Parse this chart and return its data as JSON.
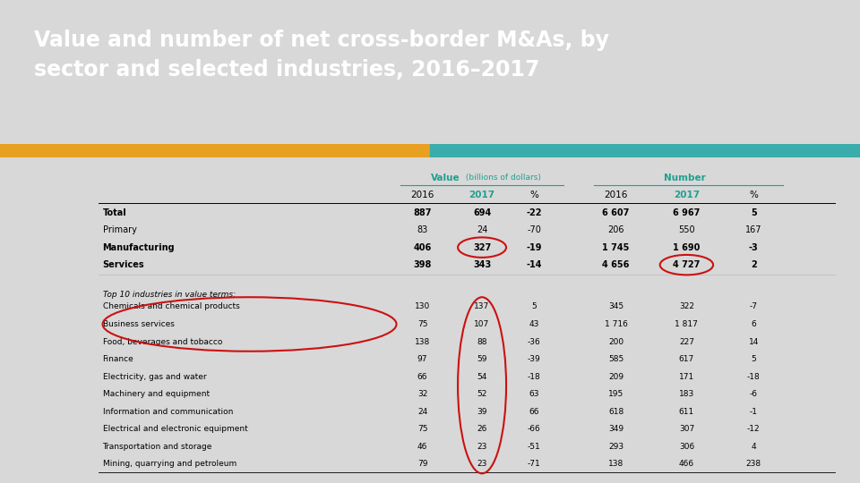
{
  "title_line1": "Value and number of net cross-border M&As, by",
  "title_line2": "sector and selected industries, 2016–2017",
  "title_bg_color": "#636363",
  "title_text_color": "#ffffff",
  "accent_color1": "#e8a020",
  "accent_color2": "#3aacac",
  "slide_bg_color": "#d8d8d8",
  "header_teal": "#20a090",
  "col_headers_2": [
    "2016",
    "2017",
    "%",
    "2016",
    "2017",
    "%"
  ],
  "sectors": [
    [
      "Total",
      "887",
      "694",
      "-22",
      "6 607",
      "6 967",
      "5",
      true,
      true
    ],
    [
      "Primary",
      "83",
      "24",
      "-70",
      "206",
      "550",
      "167",
      false,
      false
    ],
    [
      "Manufacturing",
      "406",
      "327",
      "-19",
      "1 745",
      "1 690",
      "-3",
      true,
      true
    ],
    [
      "Services",
      "398",
      "343",
      "-14",
      "4 656",
      "4 727",
      "2",
      true,
      true
    ]
  ],
  "industries_header": "Top 10 industries in value terms:",
  "industries": [
    [
      "Chemicals and chemical products",
      "130",
      "137",
      "5",
      "345",
      "322",
      "-7"
    ],
    [
      "Business services",
      "75",
      "107",
      "43",
      "1 716",
      "1 817",
      "6"
    ],
    [
      "Food, beverages and tobacco",
      "138",
      "88",
      "-36",
      "200",
      "227",
      "14"
    ],
    [
      "Finance",
      "97",
      "59",
      "-39",
      "585",
      "617",
      "5"
    ],
    [
      "Electricity, gas and water",
      "66",
      "54",
      "-18",
      "209",
      "171",
      "-18"
    ],
    [
      "Machinery and equipment",
      "32",
      "52",
      "63",
      "195",
      "183",
      "-6"
    ],
    [
      "Information and communication",
      "24",
      "39",
      "66",
      "618",
      "611",
      "-1"
    ],
    [
      "Electrical and electronic equipment",
      "75",
      "26",
      "-66",
      "349",
      "307",
      "-12"
    ],
    [
      "Transportation and storage",
      "46",
      "23",
      "-51",
      "293",
      "306",
      "4"
    ],
    [
      "Mining, quarrying and petroleum",
      "79",
      "23",
      "-71",
      "138",
      "466",
      "238"
    ]
  ],
  "circle_color": "#cc1111",
  "circle_lw": 1.5
}
